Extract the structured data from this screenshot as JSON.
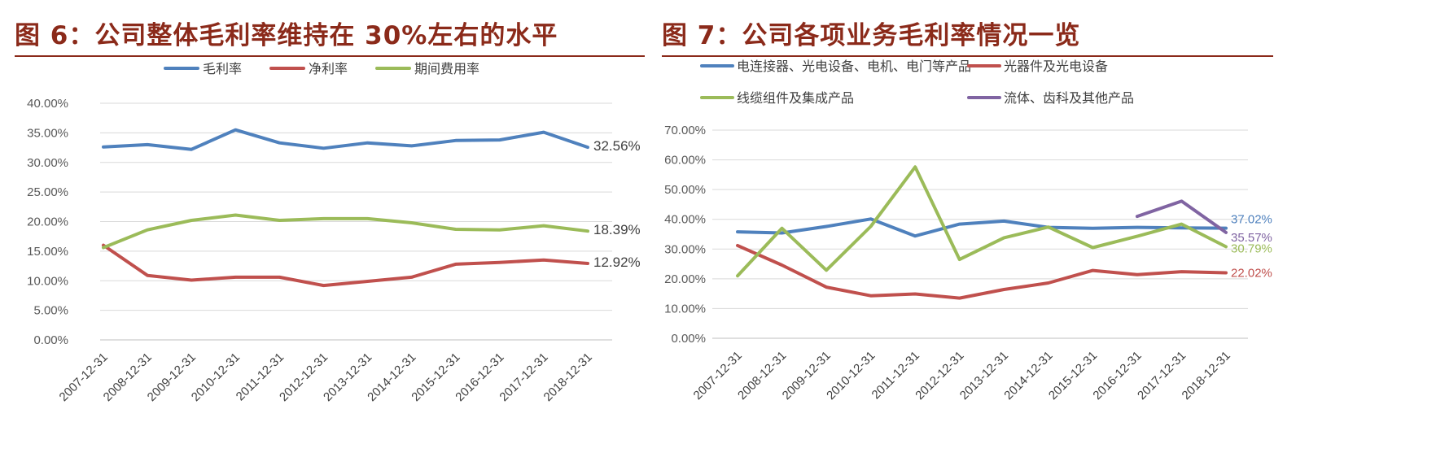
{
  "figures": [
    {
      "title": "图 6：公司整体毛利率维持在 30%左右的水平"
    },
    {
      "title": "图 7：公司各项业务毛利率情况一览"
    }
  ],
  "chart_data": [
    {
      "type": "line",
      "title": "",
      "x": [
        "2007-12-31",
        "2008-12-31",
        "2009-12-31",
        "2010-12-31",
        "2011-12-31",
        "2012-12-31",
        "2013-12-31",
        "2014-12-31",
        "2015-12-31",
        "2016-12-31",
        "2017-12-31",
        "2018-12-31"
      ],
      "yticks": [
        "0.00%",
        "5.00%",
        "10.00%",
        "15.00%",
        "20.00%",
        "25.00%",
        "30.00%",
        "35.00%",
        "40.00%"
      ],
      "ylim": [
        0,
        40
      ],
      "grid": true,
      "legend": "top",
      "series": [
        {
          "name": "毛利率",
          "color": "#4F81BD",
          "values": [
            32.6,
            33.0,
            32.2,
            35.5,
            33.3,
            32.4,
            33.3,
            32.8,
            33.7,
            33.8,
            35.1,
            32.56
          ],
          "end_label": "32.56%"
        },
        {
          "name": "净利率",
          "color": "#C0504D",
          "values": [
            16.0,
            10.9,
            10.1,
            10.6,
            10.6,
            9.2,
            9.9,
            10.6,
            12.8,
            13.1,
            13.5,
            12.92
          ],
          "end_label": "12.92%"
        },
        {
          "name": "期间费用率",
          "color": "#9BBB59",
          "values": [
            15.6,
            18.6,
            20.2,
            21.1,
            20.2,
            20.5,
            20.5,
            19.8,
            18.7,
            18.6,
            19.3,
            18.39
          ],
          "end_label": "18.39%"
        }
      ]
    },
    {
      "type": "line",
      "title": "",
      "x": [
        "2007-12-31",
        "2008-12-31",
        "2009-12-31",
        "2010-12-31",
        "2011-12-31",
        "2012-12-31",
        "2013-12-31",
        "2014-12-31",
        "2015-12-31",
        "2016-12-31",
        "2017-12-31",
        "2018-12-31"
      ],
      "yticks": [
        "0.00%",
        "10.00%",
        "20.00%",
        "30.00%",
        "40.00%",
        "50.00%",
        "60.00%",
        "70.00%"
      ],
      "ylim": [
        0,
        70
      ],
      "grid": true,
      "legend": "top",
      "series": [
        {
          "name": "电连接器、光电设备、电机、电门等产品",
          "color": "#4F81BD",
          "values": [
            35.8,
            35.4,
            37.6,
            40.1,
            34.4,
            38.4,
            39.4,
            37.3,
            37.0,
            37.3,
            37.1,
            37.02
          ],
          "end_label": "37.02%"
        },
        {
          "name": "光器件及光电设备",
          "color": "#C0504D",
          "values": [
            31.2,
            24.6,
            17.2,
            14.3,
            14.9,
            13.5,
            16.4,
            18.6,
            22.8,
            21.4,
            22.4,
            22.02
          ],
          "end_label": "22.02%"
        },
        {
          "name": "线缆组件及集成产品",
          "color": "#9BBB59",
          "values": [
            21.0,
            37.0,
            22.9,
            37.6,
            57.6,
            26.5,
            33.8,
            37.4,
            30.5,
            34.3,
            38.4,
            30.79
          ],
          "end_label": "30.79%"
        },
        {
          "name": "流体、齿科及其他产品",
          "color": "#8064A2",
          "values": [
            null,
            null,
            null,
            null,
            null,
            null,
            null,
            null,
            null,
            41.0,
            46.1,
            35.57
          ],
          "end_label": "35.57%"
        }
      ]
    }
  ]
}
